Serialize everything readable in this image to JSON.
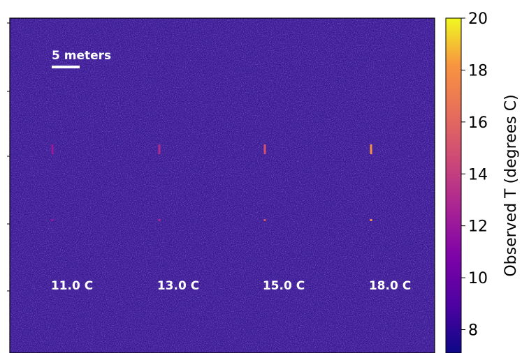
{
  "chart_data": {
    "type": "heatmap",
    "title": "",
    "xlabel": "",
    "ylabel": "",
    "scale_bar": {
      "label": "5 meters"
    },
    "annotations": [
      {
        "label": "11.0 C",
        "value": 11.0
      },
      {
        "label": "13.0 C",
        "value": 13.0
      },
      {
        "label": "15.0 C",
        "value": 15.0
      },
      {
        "label": "18.0 C",
        "value": 18.0
      }
    ],
    "targets": [
      {
        "column": 1,
        "set_temp": 11.0,
        "observed_peak": 12.0
      },
      {
        "column": 2,
        "set_temp": 13.0,
        "observed_peak": 13.0
      },
      {
        "column": 3,
        "set_temp": 15.0,
        "observed_peak": 15.0
      },
      {
        "column": 4,
        "set_temp": 18.0,
        "observed_peak": 18.0
      }
    ],
    "background_temp_mean": 8.5,
    "colorbar": {
      "label": "Observed T (degrees C)",
      "colormap": "plasma",
      "range": [
        7.1,
        20
      ],
      "ticks": [
        8,
        10,
        12,
        14,
        16,
        18,
        20
      ]
    },
    "colors": {
      "background": "#3a1c95",
      "noise_light": "#6a1ea0",
      "noise_dark": "#1e0f80",
      "label_text": "#ffffff"
    }
  }
}
